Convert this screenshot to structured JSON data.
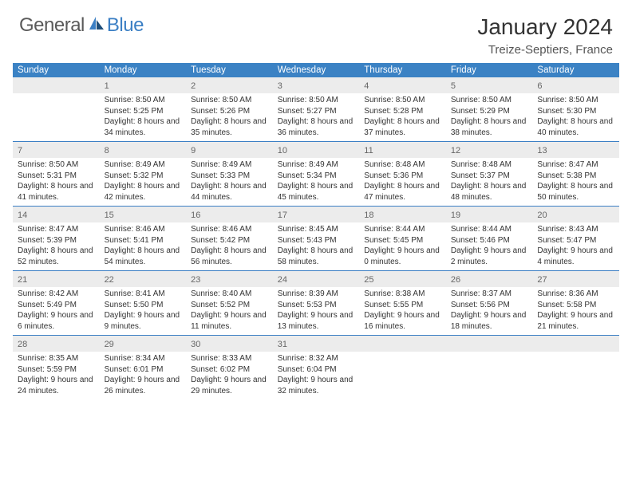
{
  "logo": {
    "general": "General",
    "blue": "Blue"
  },
  "title": "January 2024",
  "subtitle": "Treize-Septiers, France",
  "colors": {
    "header_bg": "#3b82c4",
    "header_text": "#ffffff",
    "daynum_bg": "#ececec",
    "daynum_text": "#666666",
    "body_text": "#333333",
    "divider": "#3b7fc4",
    "logo_gray": "#5a5a5a",
    "logo_blue": "#3b7fc4",
    "background": "#ffffff"
  },
  "day_names": [
    "Sunday",
    "Monday",
    "Tuesday",
    "Wednesday",
    "Thursday",
    "Friday",
    "Saturday"
  ],
  "weeks": [
    [
      {
        "n": "",
        "sr": "",
        "ss": "",
        "dl": ""
      },
      {
        "n": "1",
        "sr": "Sunrise: 8:50 AM",
        "ss": "Sunset: 5:25 PM",
        "dl": "Daylight: 8 hours and 34 minutes."
      },
      {
        "n": "2",
        "sr": "Sunrise: 8:50 AM",
        "ss": "Sunset: 5:26 PM",
        "dl": "Daylight: 8 hours and 35 minutes."
      },
      {
        "n": "3",
        "sr": "Sunrise: 8:50 AM",
        "ss": "Sunset: 5:27 PM",
        "dl": "Daylight: 8 hours and 36 minutes."
      },
      {
        "n": "4",
        "sr": "Sunrise: 8:50 AM",
        "ss": "Sunset: 5:28 PM",
        "dl": "Daylight: 8 hours and 37 minutes."
      },
      {
        "n": "5",
        "sr": "Sunrise: 8:50 AM",
        "ss": "Sunset: 5:29 PM",
        "dl": "Daylight: 8 hours and 38 minutes."
      },
      {
        "n": "6",
        "sr": "Sunrise: 8:50 AM",
        "ss": "Sunset: 5:30 PM",
        "dl": "Daylight: 8 hours and 40 minutes."
      }
    ],
    [
      {
        "n": "7",
        "sr": "Sunrise: 8:50 AM",
        "ss": "Sunset: 5:31 PM",
        "dl": "Daylight: 8 hours and 41 minutes."
      },
      {
        "n": "8",
        "sr": "Sunrise: 8:49 AM",
        "ss": "Sunset: 5:32 PM",
        "dl": "Daylight: 8 hours and 42 minutes."
      },
      {
        "n": "9",
        "sr": "Sunrise: 8:49 AM",
        "ss": "Sunset: 5:33 PM",
        "dl": "Daylight: 8 hours and 44 minutes."
      },
      {
        "n": "10",
        "sr": "Sunrise: 8:49 AM",
        "ss": "Sunset: 5:34 PM",
        "dl": "Daylight: 8 hours and 45 minutes."
      },
      {
        "n": "11",
        "sr": "Sunrise: 8:48 AM",
        "ss": "Sunset: 5:36 PM",
        "dl": "Daylight: 8 hours and 47 minutes."
      },
      {
        "n": "12",
        "sr": "Sunrise: 8:48 AM",
        "ss": "Sunset: 5:37 PM",
        "dl": "Daylight: 8 hours and 48 minutes."
      },
      {
        "n": "13",
        "sr": "Sunrise: 8:47 AM",
        "ss": "Sunset: 5:38 PM",
        "dl": "Daylight: 8 hours and 50 minutes."
      }
    ],
    [
      {
        "n": "14",
        "sr": "Sunrise: 8:47 AM",
        "ss": "Sunset: 5:39 PM",
        "dl": "Daylight: 8 hours and 52 minutes."
      },
      {
        "n": "15",
        "sr": "Sunrise: 8:46 AM",
        "ss": "Sunset: 5:41 PM",
        "dl": "Daylight: 8 hours and 54 minutes."
      },
      {
        "n": "16",
        "sr": "Sunrise: 8:46 AM",
        "ss": "Sunset: 5:42 PM",
        "dl": "Daylight: 8 hours and 56 minutes."
      },
      {
        "n": "17",
        "sr": "Sunrise: 8:45 AM",
        "ss": "Sunset: 5:43 PM",
        "dl": "Daylight: 8 hours and 58 minutes."
      },
      {
        "n": "18",
        "sr": "Sunrise: 8:44 AM",
        "ss": "Sunset: 5:45 PM",
        "dl": "Daylight: 9 hours and 0 minutes."
      },
      {
        "n": "19",
        "sr": "Sunrise: 8:44 AM",
        "ss": "Sunset: 5:46 PM",
        "dl": "Daylight: 9 hours and 2 minutes."
      },
      {
        "n": "20",
        "sr": "Sunrise: 8:43 AM",
        "ss": "Sunset: 5:47 PM",
        "dl": "Daylight: 9 hours and 4 minutes."
      }
    ],
    [
      {
        "n": "21",
        "sr": "Sunrise: 8:42 AM",
        "ss": "Sunset: 5:49 PM",
        "dl": "Daylight: 9 hours and 6 minutes."
      },
      {
        "n": "22",
        "sr": "Sunrise: 8:41 AM",
        "ss": "Sunset: 5:50 PM",
        "dl": "Daylight: 9 hours and 9 minutes."
      },
      {
        "n": "23",
        "sr": "Sunrise: 8:40 AM",
        "ss": "Sunset: 5:52 PM",
        "dl": "Daylight: 9 hours and 11 minutes."
      },
      {
        "n": "24",
        "sr": "Sunrise: 8:39 AM",
        "ss": "Sunset: 5:53 PM",
        "dl": "Daylight: 9 hours and 13 minutes."
      },
      {
        "n": "25",
        "sr": "Sunrise: 8:38 AM",
        "ss": "Sunset: 5:55 PM",
        "dl": "Daylight: 9 hours and 16 minutes."
      },
      {
        "n": "26",
        "sr": "Sunrise: 8:37 AM",
        "ss": "Sunset: 5:56 PM",
        "dl": "Daylight: 9 hours and 18 minutes."
      },
      {
        "n": "27",
        "sr": "Sunrise: 8:36 AM",
        "ss": "Sunset: 5:58 PM",
        "dl": "Daylight: 9 hours and 21 minutes."
      }
    ],
    [
      {
        "n": "28",
        "sr": "Sunrise: 8:35 AM",
        "ss": "Sunset: 5:59 PM",
        "dl": "Daylight: 9 hours and 24 minutes."
      },
      {
        "n": "29",
        "sr": "Sunrise: 8:34 AM",
        "ss": "Sunset: 6:01 PM",
        "dl": "Daylight: 9 hours and 26 minutes."
      },
      {
        "n": "30",
        "sr": "Sunrise: 8:33 AM",
        "ss": "Sunset: 6:02 PM",
        "dl": "Daylight: 9 hours and 29 minutes."
      },
      {
        "n": "31",
        "sr": "Sunrise: 8:32 AM",
        "ss": "Sunset: 6:04 PM",
        "dl": "Daylight: 9 hours and 32 minutes."
      },
      {
        "n": "",
        "sr": "",
        "ss": "",
        "dl": ""
      },
      {
        "n": "",
        "sr": "",
        "ss": "",
        "dl": ""
      },
      {
        "n": "",
        "sr": "",
        "ss": "",
        "dl": ""
      }
    ]
  ]
}
